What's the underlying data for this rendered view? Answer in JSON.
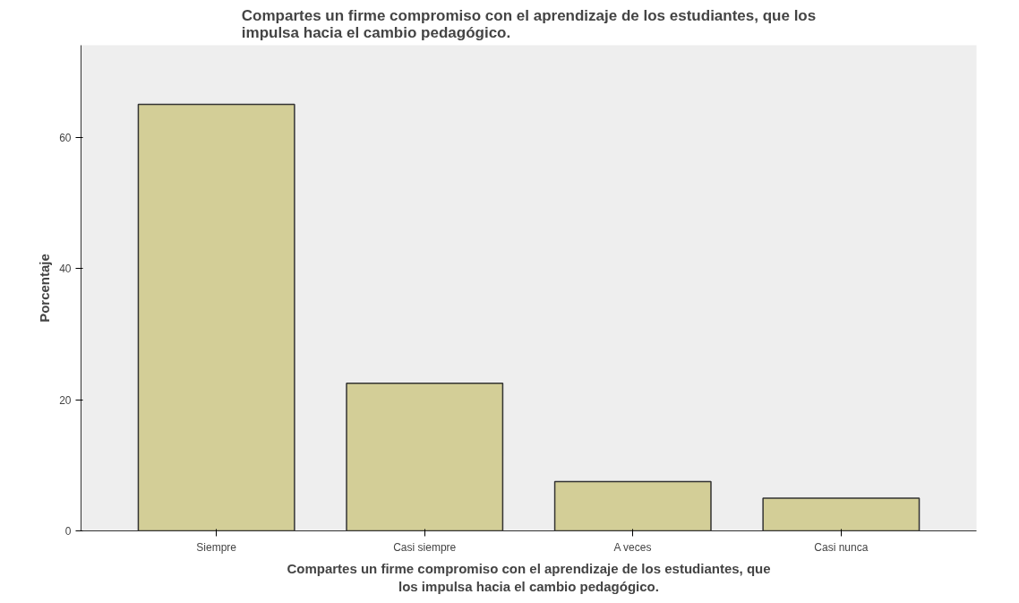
{
  "chart_data": {
    "type": "bar",
    "title": "Compartes un firme compromiso con el aprendizaje de los estudiantes, que los\nimpulsa hacia el cambio pedagógico.",
    "xlabel": "Compartes un firme compromiso con el aprendizaje de los estudiantes, que\nlos impulsa hacia el cambio pedagógico.",
    "ylabel": "Porcentaje",
    "categories": [
      "Siempre",
      "Casi siempre",
      "A veces",
      "Casi nunca"
    ],
    "values": [
      65,
      22.5,
      7.5,
      5
    ],
    "color": "#d3ce97",
    "ylim": [
      0,
      74
    ],
    "yticks": [
      0,
      20,
      40,
      60
    ],
    "grid": false
  }
}
